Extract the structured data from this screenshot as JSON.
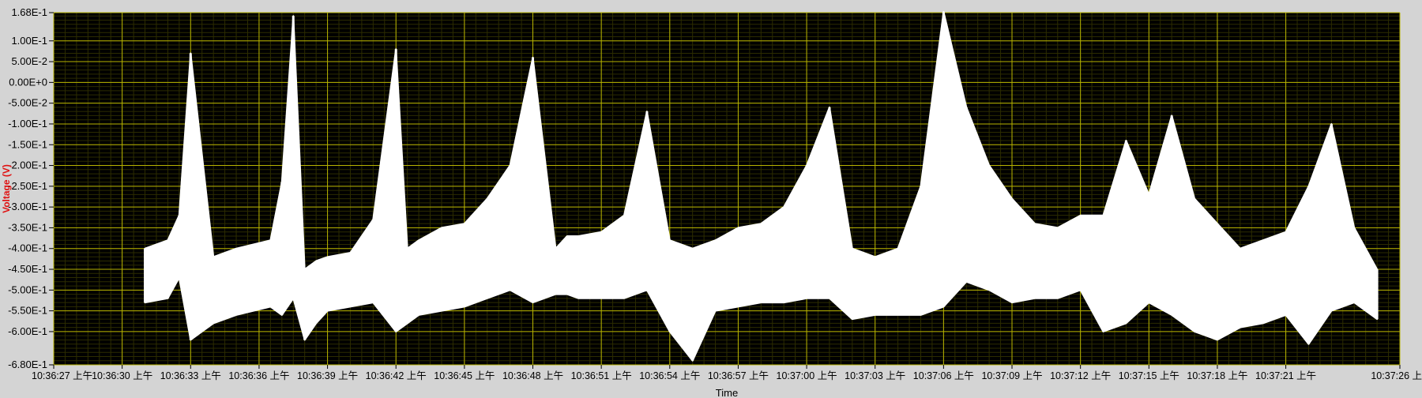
{
  "chart_data": {
    "type": "line",
    "title": "",
    "xlabel": "Time",
    "ylabel": "Voltage (V)",
    "ylim": [
      -0.68,
      0.168
    ],
    "xlim": [
      "10:36:27",
      "10:37:26"
    ],
    "grid": true,
    "y_ticks": [
      {
        "value": 0.168,
        "label": "1.68E-1"
      },
      {
        "value": 0.1,
        "label": "1.00E-1"
      },
      {
        "value": 0.05,
        "label": "5.00E-2"
      },
      {
        "value": 0.0,
        "label": "0.00E+0"
      },
      {
        "value": -0.05,
        "label": "-5.00E-2"
      },
      {
        "value": -0.1,
        "label": "-1.00E-1"
      },
      {
        "value": -0.15,
        "label": "-1.50E-1"
      },
      {
        "value": -0.2,
        "label": "-2.00E-1"
      },
      {
        "value": -0.25,
        "label": "-2.50E-1"
      },
      {
        "value": -0.3,
        "label": "-3.00E-1"
      },
      {
        "value": -0.35,
        "label": "-3.50E-1"
      },
      {
        "value": -0.4,
        "label": "-4.00E-1"
      },
      {
        "value": -0.45,
        "label": "-4.50E-1"
      },
      {
        "value": -0.5,
        "label": "-5.00E-1"
      },
      {
        "value": -0.55,
        "label": "-5.50E-1"
      },
      {
        "value": -0.6,
        "label": "-6.00E-1"
      },
      {
        "value": -0.68,
        "label": "-6.80E-1"
      }
    ],
    "x_ticks": [
      {
        "value": "10:36:27",
        "label": "10:36:27 上午"
      },
      {
        "value": "10:36:30",
        "label": "10:36:30 上午"
      },
      {
        "value": "10:36:33",
        "label": "10:36:33 上午"
      },
      {
        "value": "10:36:36",
        "label": "10:36:36 上午"
      },
      {
        "value": "10:36:39",
        "label": "10:36:39 上午"
      },
      {
        "value": "10:36:42",
        "label": "10:36:42 上午"
      },
      {
        "value": "10:36:45",
        "label": "10:36:45 上午"
      },
      {
        "value": "10:36:48",
        "label": "10:36:48 上午"
      },
      {
        "value": "10:36:51",
        "label": "10:36:51 上午"
      },
      {
        "value": "10:36:54",
        "label": "10:36:54 上午"
      },
      {
        "value": "10:36:57",
        "label": "10:36:57 上午"
      },
      {
        "value": "10:37:00",
        "label": "10:37:00 上午"
      },
      {
        "value": "10:37:03",
        "label": "10:37:03 上午"
      },
      {
        "value": "10:37:06",
        "label": "10:37:06 上午"
      },
      {
        "value": "10:37:09",
        "label": "10:37:09 上午"
      },
      {
        "value": "10:37:12",
        "label": "10:37:12 上午"
      },
      {
        "value": "10:37:15",
        "label": "10:37:15 上午"
      },
      {
        "value": "10:37:18",
        "label": "10:37:18 上午"
      },
      {
        "value": "10:37:21",
        "label": "10:37:21 上午"
      },
      {
        "value": "10:37:26",
        "label": "10:37:26 上"
      }
    ],
    "series": [
      {
        "x": [
          "10:36:31",
          "10:36:32",
          "10:36:32.5",
          "10:36:33",
          "10:36:34",
          "10:36:35",
          "10:36:36.5",
          "10:36:37",
          "10:36:37.5",
          "10:36:38",
          "10:36:38.5",
          "10:36:39",
          "10:36:40",
          "10:36:41",
          "10:36:42",
          "10:36:42.5",
          "10:36:43",
          "10:36:44",
          "10:36:45",
          "10:36:46",
          "10:36:47",
          "10:36:48",
          "10:36:49",
          "10:36:49.5",
          "10:36:50",
          "10:36:51",
          "10:36:52",
          "10:36:53",
          "10:36:54",
          "10:36:55",
          "10:36:56",
          "10:36:57",
          "10:36:58",
          "10:36:59",
          "10:37:00",
          "10:37:01",
          "10:37:02",
          "10:37:03",
          "10:37:04",
          "10:37:05",
          "10:37:06",
          "10:37:07",
          "10:37:08",
          "10:37:09",
          "10:37:10",
          "10:37:11",
          "10:37:12",
          "10:37:13",
          "10:37:14",
          "10:37:15",
          "10:37:16",
          "10:37:17",
          "10:37:18",
          "10:37:19",
          "10:37:20",
          "10:37:21",
          "10:37:22",
          "10:37:23",
          "10:37:24",
          "10:37:25"
        ],
        "y_high": [
          -0.4,
          -0.38,
          -0.32,
          0.07,
          -0.42,
          -0.4,
          -0.38,
          -0.24,
          0.16,
          -0.45,
          -0.43,
          -0.42,
          -0.41,
          -0.33,
          0.08,
          -0.4,
          -0.38,
          -0.35,
          -0.34,
          -0.28,
          -0.2,
          0.06,
          -0.4,
          -0.37,
          -0.37,
          -0.36,
          -0.32,
          -0.07,
          -0.38,
          -0.4,
          -0.38,
          -0.35,
          -0.34,
          -0.3,
          -0.2,
          -0.06,
          -0.4,
          -0.42,
          -0.4,
          -0.25,
          0.17,
          -0.06,
          -0.2,
          -0.28,
          -0.34,
          -0.35,
          -0.32,
          -0.32,
          -0.14,
          -0.27,
          -0.08,
          -0.28,
          -0.34,
          -0.4,
          -0.38,
          -0.36,
          -0.25,
          -0.1,
          -0.35,
          -0.45
        ],
        "y_low": [
          -0.53,
          -0.52,
          -0.47,
          -0.62,
          -0.58,
          -0.56,
          -0.54,
          -0.56,
          -0.52,
          -0.62,
          -0.58,
          -0.55,
          -0.54,
          -0.53,
          -0.6,
          -0.58,
          -0.56,
          -0.55,
          -0.54,
          -0.52,
          -0.5,
          -0.53,
          -0.51,
          -0.51,
          -0.52,
          -0.52,
          -0.52,
          -0.5,
          -0.6,
          -0.67,
          -0.55,
          -0.54,
          -0.53,
          -0.53,
          -0.52,
          -0.52,
          -0.57,
          -0.56,
          -0.56,
          -0.56,
          -0.54,
          -0.48,
          -0.5,
          -0.53,
          -0.52,
          -0.52,
          -0.5,
          -0.6,
          -0.58,
          -0.53,
          -0.56,
          -0.6,
          -0.62,
          -0.59,
          -0.58,
          -0.56,
          -0.63,
          -0.55,
          -0.53,
          -0.57
        ]
      }
    ],
    "colors": {
      "frame": "#d4d4d4",
      "plot_background": "#000000",
      "grid_major": "#b8b400",
      "grid_minor": "#2c2c00",
      "trace": "#ffffff",
      "ylabel": "#e01010"
    }
  }
}
